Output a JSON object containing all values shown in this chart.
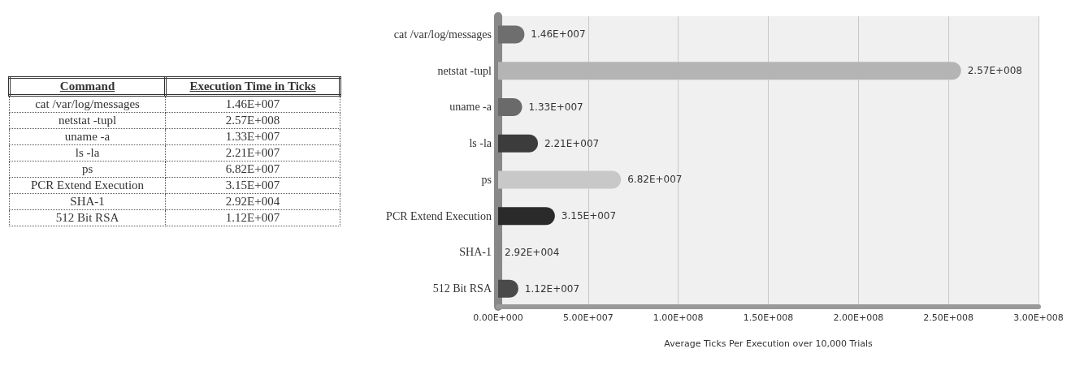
{
  "chart_data": {
    "type": "bar",
    "orientation": "horizontal",
    "xlabel": "Average Ticks Per Execution over 10,000 Trials",
    "categories": [
      "cat /var/log/messages",
      "netstat -tupl",
      "uname -a",
      "ls -la",
      "ps",
      "PCR Extend Execution",
      "SHA-1",
      "512 Bit RSA"
    ],
    "values": [
      14600000,
      257000000,
      13300000,
      22100000,
      68200000,
      31500000,
      29200,
      11200000
    ],
    "colors": [
      "#6e6e6e",
      "#b4b4b4",
      "#6a6a6a",
      "#3c3c3c",
      "#c8c8c8",
      "#2a2a2a",
      "#5a5a5a",
      "#4a4a4a"
    ],
    "value_labels": [
      "1.46E+007",
      "2.57E+008",
      "1.33E+007",
      "2.21E+007",
      "6.82E+007",
      "3.15E+007",
      "2.92E+004",
      "1.12E+007"
    ],
    "xlim": [
      0,
      300000000
    ],
    "xticks": [
      {
        "value": 0,
        "label": "0.00E+000"
      },
      {
        "value": 50000000,
        "label": "5.00E+007"
      },
      {
        "value": 100000000,
        "label": "1.00E+008"
      },
      {
        "value": 150000000,
        "label": "1.50E+008"
      },
      {
        "value": 200000000,
        "label": "2.00E+008"
      },
      {
        "value": 250000000,
        "label": "2.50E+008"
      },
      {
        "value": 300000000,
        "label": "3.00E+008"
      }
    ],
    "grid": "x",
    "annotations": [
      "Command",
      "Execution Time in Ticks"
    ]
  }
}
